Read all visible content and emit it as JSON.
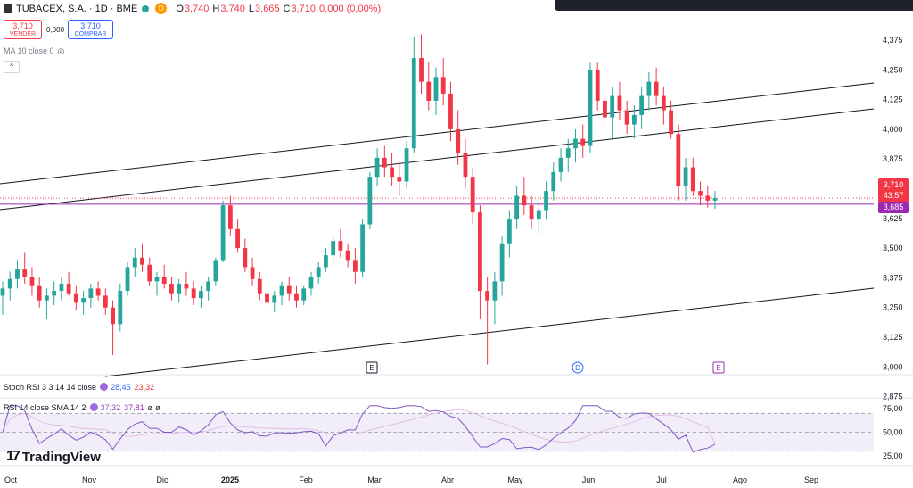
{
  "header": {
    "symbol": "TUBACEX, S.A. · 1D · BME",
    "delay_badge": "D",
    "open_label": "O",
    "open": "3,740",
    "high_label": "H",
    "high": "3,740",
    "low_label": "L",
    "low": "3,665",
    "close_label": "C",
    "close": "3,710",
    "change": "0,000 (0,00%)"
  },
  "trade": {
    "sell_price": "3,710",
    "sell_label": "VENDER",
    "spread": "0,000",
    "buy_price": "3,710",
    "buy_label": "COMPRAR"
  },
  "ma_label": "MA 10 close 0",
  "stoch": {
    "label": "Stoch RSI 3 3 14 14 close",
    "k": "28,45",
    "d": "23,32"
  },
  "rsi": {
    "label": "RSI 14 close SMA 14 2",
    "rsi": "37,32",
    "sma": "37,81",
    "x1": "ø",
    "x2": "ø"
  },
  "brand": "TradingView",
  "price_tags": {
    "last": "3,710",
    "countdown": "43:57",
    "ma": "3,685"
  },
  "colors": {
    "up": "#26a69a",
    "down": "#f23645",
    "band": "#9c27b0",
    "rsi": "#7e57c2",
    "rsi_sma": "#e1bee7"
  },
  "chart_data": {
    "type": "candlestick",
    "price_axis_ticks": [
      "4,375",
      "4,250",
      "4,125",
      "4,000",
      "3,875",
      "3,750",
      "3,625",
      "3,500",
      "3,375",
      "3,250",
      "3,125",
      "3,000",
      "2,875"
    ],
    "time_axis_labels": [
      "Oct",
      "Nov",
      "Dic",
      "2025",
      "Feb",
      "Mar",
      "Abr",
      "May",
      "Jun",
      "Jul",
      "Ago",
      "Sep"
    ],
    "ohlc_approx": [
      [
        3.3,
        3.36,
        3.22,
        3.33
      ],
      [
        3.33,
        3.4,
        3.28,
        3.37
      ],
      [
        3.37,
        3.45,
        3.33,
        3.41
      ],
      [
        3.41,
        3.48,
        3.35,
        3.38
      ],
      [
        3.38,
        3.42,
        3.3,
        3.34
      ],
      [
        3.34,
        3.38,
        3.25,
        3.28
      ],
      [
        3.28,
        3.33,
        3.2,
        3.3
      ],
      [
        3.3,
        3.36,
        3.26,
        3.32
      ],
      [
        3.32,
        3.38,
        3.28,
        3.35
      ],
      [
        3.35,
        3.4,
        3.3,
        3.31
      ],
      [
        3.31,
        3.34,
        3.24,
        3.27
      ],
      [
        3.27,
        3.32,
        3.22,
        3.29
      ],
      [
        3.29,
        3.35,
        3.25,
        3.33
      ],
      [
        3.33,
        3.36,
        3.28,
        3.3
      ],
      [
        3.3,
        3.33,
        3.22,
        3.25
      ],
      [
        3.25,
        3.28,
        3.05,
        3.18
      ],
      [
        3.18,
        3.35,
        3.15,
        3.32
      ],
      [
        3.32,
        3.44,
        3.3,
        3.42
      ],
      [
        3.42,
        3.5,
        3.38,
        3.46
      ],
      [
        3.46,
        3.52,
        3.4,
        3.43
      ],
      [
        3.43,
        3.46,
        3.34,
        3.36
      ],
      [
        3.36,
        3.4,
        3.3,
        3.38
      ],
      [
        3.38,
        3.43,
        3.33,
        3.35
      ],
      [
        3.35,
        3.38,
        3.28,
        3.31
      ],
      [
        3.31,
        3.37,
        3.27,
        3.35
      ],
      [
        3.35,
        3.4,
        3.3,
        3.33
      ],
      [
        3.33,
        3.36,
        3.26,
        3.29
      ],
      [
        3.29,
        3.34,
        3.25,
        3.32
      ],
      [
        3.32,
        3.38,
        3.28,
        3.36
      ],
      [
        3.36,
        3.46,
        3.34,
        3.45
      ],
      [
        3.45,
        3.7,
        3.44,
        3.68
      ],
      [
        3.68,
        3.72,
        3.55,
        3.58
      ],
      [
        3.58,
        3.62,
        3.48,
        3.5
      ],
      [
        3.5,
        3.54,
        3.4,
        3.42
      ],
      [
        3.42,
        3.46,
        3.34,
        3.37
      ],
      [
        3.37,
        3.4,
        3.28,
        3.31
      ],
      [
        3.31,
        3.34,
        3.24,
        3.27
      ],
      [
        3.27,
        3.32,
        3.23,
        3.3
      ],
      [
        3.3,
        3.36,
        3.26,
        3.34
      ],
      [
        3.34,
        3.38,
        3.28,
        3.31
      ],
      [
        3.31,
        3.34,
        3.25,
        3.28
      ],
      [
        3.28,
        3.34,
        3.26,
        3.33
      ],
      [
        3.33,
        3.4,
        3.3,
        3.38
      ],
      [
        3.38,
        3.44,
        3.35,
        3.42
      ],
      [
        3.42,
        3.5,
        3.4,
        3.47
      ],
      [
        3.47,
        3.55,
        3.44,
        3.53
      ],
      [
        3.53,
        3.58,
        3.46,
        3.49
      ],
      [
        3.49,
        3.52,
        3.42,
        3.45
      ],
      [
        3.45,
        3.5,
        3.35,
        3.4
      ],
      [
        3.4,
        3.62,
        3.38,
        3.6
      ],
      [
        3.6,
        3.82,
        3.58,
        3.8
      ],
      [
        3.8,
        3.92,
        3.76,
        3.88
      ],
      [
        3.88,
        3.93,
        3.8,
        3.84
      ],
      [
        3.84,
        3.9,
        3.76,
        3.8
      ],
      [
        3.8,
        3.86,
        3.72,
        3.78
      ],
      [
        3.78,
        3.95,
        3.75,
        3.92
      ],
      [
        3.92,
        4.39,
        3.9,
        4.3
      ],
      [
        4.3,
        4.4,
        4.15,
        4.2
      ],
      [
        4.2,
        4.28,
        4.08,
        4.12
      ],
      [
        4.12,
        4.26,
        4.06,
        4.22
      ],
      [
        4.22,
        4.3,
        4.1,
        4.15
      ],
      [
        4.15,
        4.2,
        3.95,
        4.0
      ],
      [
        4.0,
        4.08,
        3.85,
        3.9
      ],
      [
        3.9,
        3.96,
        3.75,
        3.8
      ],
      [
        3.8,
        3.84,
        3.6,
        3.65
      ],
      [
        3.65,
        3.68,
        3.2,
        3.32
      ],
      [
        3.32,
        3.38,
        3.01,
        3.28
      ],
      [
        3.28,
        3.4,
        3.18,
        3.36
      ],
      [
        3.36,
        3.55,
        3.3,
        3.52
      ],
      [
        3.52,
        3.66,
        3.46,
        3.62
      ],
      [
        3.62,
        3.76,
        3.58,
        3.72
      ],
      [
        3.72,
        3.8,
        3.64,
        3.68
      ],
      [
        3.68,
        3.72,
        3.58,
        3.62
      ],
      [
        3.62,
        3.7,
        3.56,
        3.66
      ],
      [
        3.66,
        3.78,
        3.62,
        3.74
      ],
      [
        3.74,
        3.86,
        3.7,
        3.82
      ],
      [
        3.82,
        3.92,
        3.78,
        3.88
      ],
      [
        3.88,
        3.96,
        3.82,
        3.92
      ],
      [
        3.92,
        4.0,
        3.86,
        3.96
      ],
      [
        3.96,
        4.02,
        3.88,
        3.93
      ],
      [
        3.93,
        4.28,
        3.9,
        4.25
      ],
      [
        4.25,
        4.28,
        4.08,
        4.12
      ],
      [
        4.12,
        4.2,
        4.0,
        4.05
      ],
      [
        4.05,
        4.18,
        3.96,
        4.14
      ],
      [
        4.14,
        4.2,
        4.04,
        4.08
      ],
      [
        4.08,
        4.12,
        3.98,
        4.02
      ],
      [
        4.02,
        4.1,
        3.96,
        4.06
      ],
      [
        4.06,
        4.18,
        4.0,
        4.14
      ],
      [
        4.14,
        4.24,
        4.08,
        4.2
      ],
      [
        4.2,
        4.26,
        4.1,
        4.14
      ],
      [
        4.14,
        4.18,
        4.02,
        4.08
      ],
      [
        4.08,
        4.12,
        3.96,
        3.98
      ],
      [
        3.98,
        4.02,
        3.7,
        3.76
      ],
      [
        3.76,
        3.88,
        3.7,
        3.84
      ],
      [
        3.84,
        3.88,
        3.72,
        3.74
      ],
      [
        3.74,
        3.78,
        3.68,
        3.72
      ],
      [
        3.72,
        3.76,
        3.67,
        3.7
      ],
      [
        3.7,
        3.74,
        3.665,
        3.71
      ]
    ],
    "channel_lines": [
      {
        "from": [
          "Oct",
          3.72
        ],
        "to": [
          "Sep+",
          4.18
        ]
      },
      {
        "from": [
          "Oct",
          3.58
        ],
        "to": [
          "Sep+",
          4.06
        ]
      },
      {
        "from": [
          "Oct",
          2.53
        ],
        "to": [
          "Sep+",
          3.23
        ]
      }
    ],
    "horizontal_lines": [
      3.685,
      3.71
    ],
    "event_markers": [
      {
        "label": "E",
        "at": "Mar"
      },
      {
        "label": "D",
        "at": "Jun"
      },
      {
        "label": "E",
        "at": "Jul"
      }
    ],
    "rsi_panel": {
      "ticks": [
        "75,00",
        "50,00",
        "25,00"
      ],
      "levels": [
        70,
        50,
        30
      ],
      "last_rsi": 37.32,
      "last_sma": 37.81
    }
  }
}
